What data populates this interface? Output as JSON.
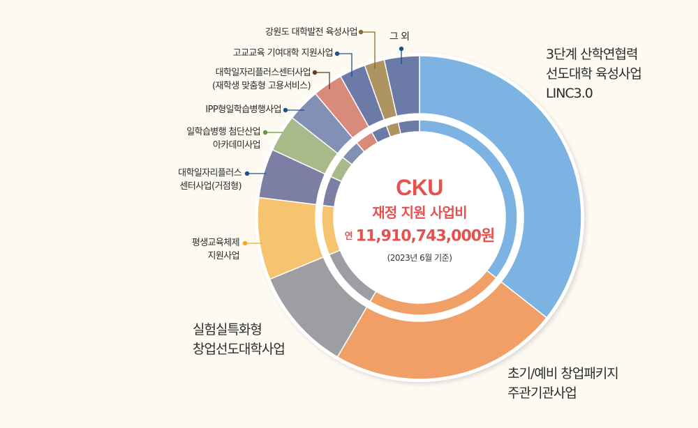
{
  "chart_data": {
    "type": "pie",
    "variant": "double-ring-donut",
    "title": "CKU 재정 지원 사업비",
    "unit": "degrees-estimated share",
    "total_text": "연 11,910,743,000원",
    "note": "(2023년  6월 기준)",
    "categories": [
      "3단계 산학연협력 선도대학 육성사업 LINC3.0",
      "초기/예비 창업패키지 주관기관사업",
      "실험실특화형 창업선도대학사업",
      "평생교육체제 지원사업",
      "대학일자리플러스 센터사업(거점형)",
      "일학습병행 첨단산업 아카데미사업",
      "IPP형일학습병행사업",
      "대학일자리플러스센터사업 (재학생 맞춤형 고용서비스)",
      "고교교육 기여대학 지원사업",
      "강원도 대학발전 육성사업",
      "그 외"
    ],
    "values": [
      35.6,
      22.8,
      10.3,
      8.2,
      4.9,
      3.7,
      3.3,
      3.0,
      2.6,
      2.0,
      3.5
    ],
    "colors": [
      "#7db3e2",
      "#f0a066",
      "#9d9ea3",
      "#f6c46e",
      "#7c7fa3",
      "#a8b98a",
      "#8390b6",
      "#d88a7b",
      "#6b7aa6",
      "#ad9460",
      "#6b7aa6"
    ],
    "legend_position": "callout labels around ring"
  },
  "center": {
    "title": "CKU",
    "subtitle": "재정 지원 사업비",
    "amount_prefix": "연",
    "amount": "11,910,743,000원",
    "note": "(2023년  6월 기준)"
  },
  "labels": {
    "linc": [
      "3단계 산학연협력",
      "선도대학 육성사업",
      "LINC3.0"
    ],
    "startup": [
      "초기/예비 창업패키지",
      "주관기관사업"
    ],
    "lab": [
      "실험실특화형",
      "창업선도대학사업"
    ],
    "lifelong": [
      "평생교육체제",
      "지원사업"
    ],
    "jobhub": [
      "대학일자리플러스",
      "센터사업(거점형)"
    ],
    "academy": [
      "일학습병행 첨단산업",
      "아카데미사업"
    ],
    "ipp": [
      "IPP형일학습병행사업"
    ],
    "jobstudent": [
      "대학일자리플러스센터사업",
      "(재학생 맞춤형 고용서비스)"
    ],
    "highschool": [
      "고교교육 기여대학 지원사업"
    ],
    "gangwon": [
      "강원도 대학발전 육성사업"
    ],
    "other": [
      "그 외"
    ]
  },
  "leader_colors": {
    "gangwon": "#8a6a28",
    "highschool": "#1f4f86",
    "jobstudent": "#5b3d2a",
    "ipp": "#1f4f86",
    "academy": "#6a9238",
    "jobhub": "#1f4f86",
    "lifelong": "#f0a81e",
    "other": "#1f4f86"
  }
}
